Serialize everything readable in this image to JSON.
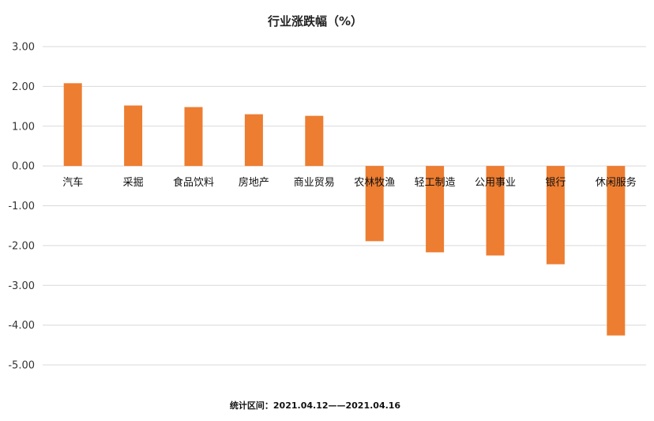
{
  "chart_data": {
    "type": "bar",
    "title": "行业涨跌幅（%）",
    "xlabel": "",
    "ylabel": "",
    "categories": [
      "汽车",
      "采掘",
      "食品饮料",
      "房地产",
      "商业贸易",
      "农林牧渔",
      "轻工制造",
      "公用事业",
      "银行",
      "休闲服务"
    ],
    "series": [
      {
        "values": [
          2.08,
          1.52,
          1.48,
          1.3,
          1.26,
          -1.89,
          -2.17,
          -2.25,
          -2.47,
          -4.26
        ]
      }
    ],
    "ylim": [
      -5,
      3
    ],
    "y_ticks": [
      "3.00",
      "2.00",
      "1.00",
      "0.00",
      "-1.00",
      "-2.00",
      "-3.00",
      "-4.00",
      "-5.00"
    ],
    "grid": true,
    "legend": "none",
    "bar_color": "#ED7D31"
  },
  "footnote": "统计区间：2021.04.12——2021.04.16"
}
